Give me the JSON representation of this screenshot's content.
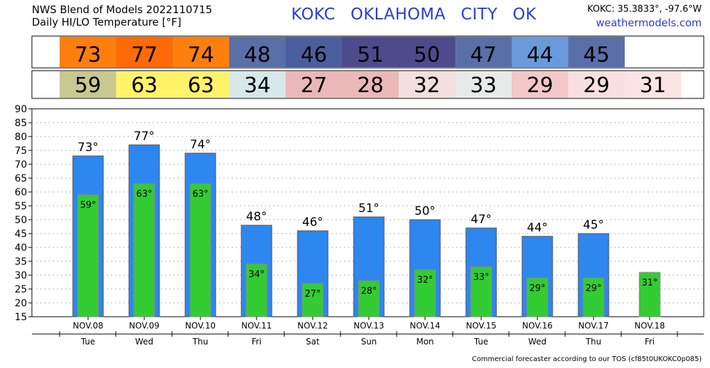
{
  "header": {
    "title_line1": "NWS Blend of Models 2022110715",
    "title_line2": "Daily HI/LO Temperature [°F]",
    "station": "KOKC   OKLAHOMA CITY   OK",
    "coords": "KOKC: 35.3833°, -97.6°W",
    "site": "weathermodels.com"
  },
  "footer": {
    "text": "Commercial forecaster according to our TOS (cf85t0UKOKC0p085)"
  },
  "hi_row_colors": [
    "#ff7f0e",
    "#ff6a08",
    "#ff7f0e",
    "#5a6fa8",
    "#4b5f9e",
    "#4e4a8c",
    "#4e4a8c",
    "#5a6fa8",
    "#6a9adc",
    "#5a6fa8"
  ],
  "lo_row_colors": [
    "#c8c890",
    "#fff36a",
    "#fff36a",
    "#d6e8ea",
    "#eab8b8",
    "#eab8b8",
    "#f4dede",
    "#e8eaea",
    "#f4c8c8",
    "#f8e0e0",
    "#fce4e4"
  ],
  "colors": {
    "hi_bar": "#2e86ef",
    "lo_bar": "#33cc33",
    "grid": "#999999"
  },
  "chart_data": {
    "type": "bar",
    "title": "Daily HI/LO Temperature [°F]",
    "categories": [
      "NOV.08",
      "NOV.09",
      "NOV.10",
      "NOV.11",
      "NOV.12",
      "NOV.13",
      "NOV.14",
      "NOV.15",
      "NOV.16",
      "NOV.17",
      "NOV.18"
    ],
    "days": [
      "Tue",
      "Wed",
      "Thu",
      "Fri",
      "Sat",
      "Sun",
      "Mon",
      "Tue",
      "Wed",
      "Thu",
      "Fri"
    ],
    "series": [
      {
        "name": "HI",
        "values": [
          73,
          77,
          74,
          48,
          46,
          51,
          50,
          47,
          44,
          45,
          null
        ]
      },
      {
        "name": "LO",
        "values": [
          59,
          63,
          63,
          34,
          27,
          28,
          32,
          33,
          29,
          29,
          31
        ]
      }
    ],
    "ylim": [
      15,
      90
    ],
    "yticks": [
      15,
      20,
      25,
      30,
      35,
      40,
      45,
      50,
      55,
      60,
      65,
      70,
      75,
      80,
      85,
      90
    ],
    "grid": true,
    "legend": "none"
  }
}
